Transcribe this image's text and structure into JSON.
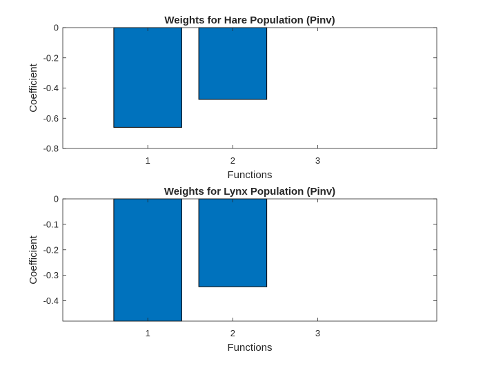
{
  "chart_data": [
    {
      "type": "bar",
      "title": "Weights for Hare Population (Pinv)",
      "xlabel": "Functions",
      "ylabel": "Coefficient",
      "categories": [
        "1",
        "2",
        "3"
      ],
      "values": [
        -0.66,
        -0.475,
        0
      ],
      "xticks": [
        "1",
        "2",
        "3"
      ],
      "yticks": [
        "0",
        "-0.2",
        "-0.4",
        "-0.6",
        "-0.8"
      ],
      "ylim": [
        -0.8,
        0
      ],
      "bar_color": "#0072BD",
      "grid": false
    },
    {
      "type": "bar",
      "title": "Weights for Lynx Population (Pinv)",
      "xlabel": "Functions",
      "ylabel": "Coefficient",
      "categories": [
        "1",
        "2",
        "3"
      ],
      "values": [
        -0.48,
        -0.345,
        0
      ],
      "xticks": [
        "1",
        "2",
        "3"
      ],
      "yticks": [
        "0",
        "-0.1",
        "-0.2",
        "-0.3",
        "-0.4"
      ],
      "ylim": [
        -0.48,
        0
      ],
      "bar_color": "#0072BD",
      "grid": false
    }
  ]
}
